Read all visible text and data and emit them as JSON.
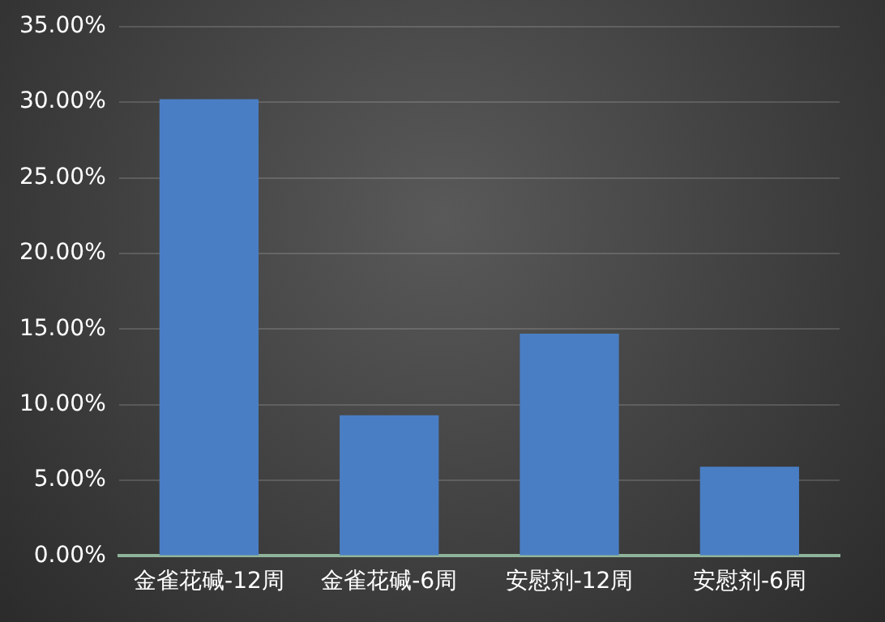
{
  "chart_data": {
    "type": "bar",
    "categories": [
      "金雀花碱-12周",
      "金雀花碱-6周",
      "安慰剂-12周",
      "安慰剂-6周"
    ],
    "values": [
      30.2,
      9.3,
      14.7,
      5.9
    ],
    "color": "#4a7ec4",
    "ylim": [
      0,
      35
    ],
    "yticks": [
      {
        "value": 0,
        "label": "0.00%"
      },
      {
        "value": 5,
        "label": "5.00%"
      },
      {
        "value": 10,
        "label": "10.00%"
      },
      {
        "value": 15,
        "label": "15.00%"
      },
      {
        "value": 20,
        "label": "20.00%"
      },
      {
        "value": 25,
        "label": "25.00%"
      },
      {
        "value": 30,
        "label": "30.00%"
      },
      {
        "value": 35,
        "label": "35.00%"
      }
    ],
    "grid": "y",
    "legend": false
  }
}
